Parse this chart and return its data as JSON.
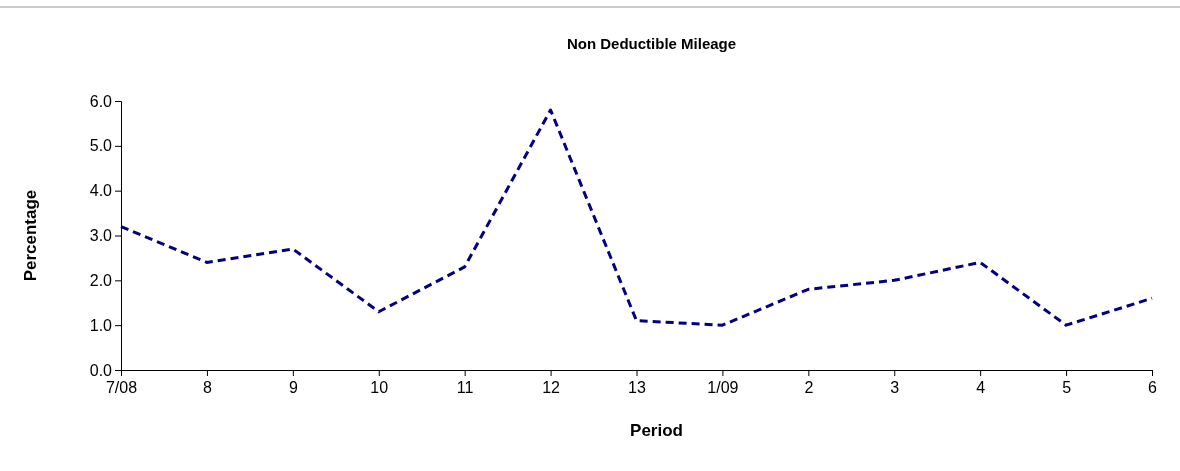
{
  "chart_data": {
    "type": "line",
    "title": "Non Deductible Mileage",
    "xlabel": "Period",
    "ylabel": "Percentage",
    "categories": [
      "7/08",
      "8",
      "9",
      "10",
      "11",
      "12",
      "13",
      "1/09",
      "2",
      "3",
      "4",
      "5",
      "6"
    ],
    "series": [
      {
        "color": "#000080",
        "values": [
          3.2,
          2.4,
          2.7,
          1.3,
          2.3,
          5.8,
          1.1,
          1.0,
          1.8,
          2.0,
          2.4,
          1.0,
          1.6
        ]
      }
    ],
    "ylim": [
      0,
      6
    ],
    "yticks": [
      {
        "value": 0,
        "label": "0.0"
      },
      {
        "value": 1,
        "label": "1.0"
      },
      {
        "value": 2,
        "label": "2.0"
      },
      {
        "value": 3,
        "label": "3.0"
      },
      {
        "value": 4,
        "label": "4.0"
      },
      {
        "value": 5,
        "label": "5.0"
      },
      {
        "value": 6,
        "label": "6.0"
      }
    ],
    "grid": false,
    "marker": "none",
    "line_style": "dashed"
  }
}
